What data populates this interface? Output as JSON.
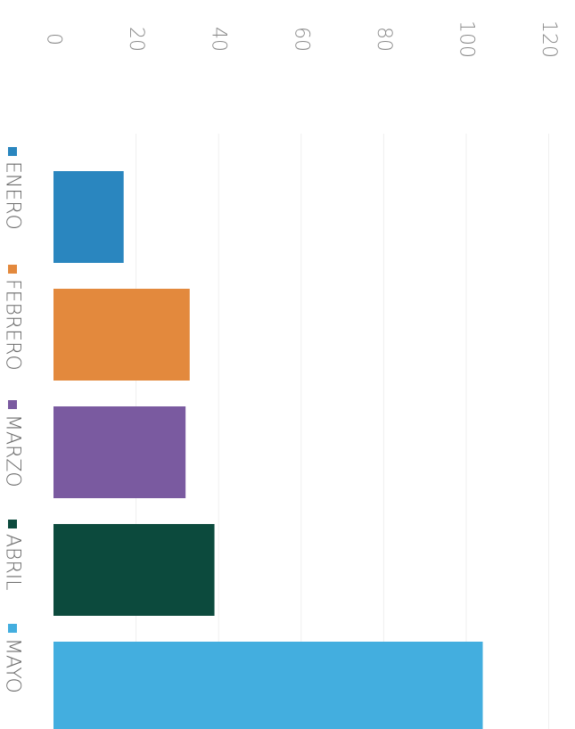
{
  "chart_data": {
    "type": "bar",
    "orientation": "horizontal",
    "categories": [
      "ENERO",
      "FEBRERO",
      "MARZO",
      "ABRIL",
      "MAYO"
    ],
    "values": [
      17,
      33,
      32,
      39,
      104
    ],
    "colors": [
      "#2a86bf",
      "#e3893d",
      "#7a5aa0",
      "#0c4a3d",
      "#43aedf"
    ],
    "xlim": [
      0,
      120
    ],
    "ticks": [
      0,
      20,
      40,
      60,
      80,
      100,
      120
    ],
    "tick_labels": [
      "0",
      "20",
      "40",
      "60",
      "80",
      "100",
      "120"
    ],
    "legend": {
      "placement": "left",
      "entries": [
        {
          "label": "ENERO",
          "color": "#2a86bf"
        },
        {
          "label": "FEBRERO",
          "color": "#e3893d"
        },
        {
          "label": "MARZO",
          "color": "#7a5aa0"
        },
        {
          "label": "ABRIL",
          "color": "#0c4a3d"
        },
        {
          "label": "MAYO",
          "color": "#43aedf"
        }
      ]
    },
    "grid": true,
    "title": "",
    "xlabel": "",
    "ylabel": ""
  }
}
